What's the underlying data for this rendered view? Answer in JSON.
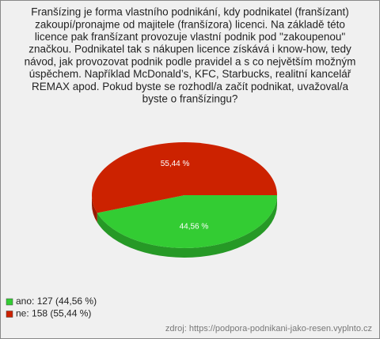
{
  "chart_data": {
    "type": "pie",
    "title": [
      "Franšízing je forma vlastního podnikání, kdy podnikatel (franšízant)",
      "zakoupí/pronajme od majitele (franšízora) licenci. Na základě této",
      "licence pak franšízant provozuje vlastní podnik pod \"zakoupenou\"",
      "značkou. Podnikatel tak s nákupen licence získává i know-how, tedy",
      "návod, jak provozovat podnik podle pravidel a s co největším možným",
      "úspěchem. Například McDonald’s, KFC, Starbucks, realitní kancelář",
      "REMAX apod. Pokud byste se rozhodl/a začít podnikat, uvažoval/a",
      "byste o franšízingu?"
    ],
    "categories": [
      "ano",
      "ne"
    ],
    "values": [
      44.56,
      55.44
    ],
    "value_labels": [
      "44,56 %",
      "55,44 %"
    ],
    "colors": [
      "#33cc33",
      "#cc2200"
    ],
    "legend": [
      "ano: 127 (44,56 %)",
      "ne: 158 (55,44 %)"
    ],
    "source": "zdroj: https://podpora-podnikani-jako-resen.vyplnto.cz"
  }
}
